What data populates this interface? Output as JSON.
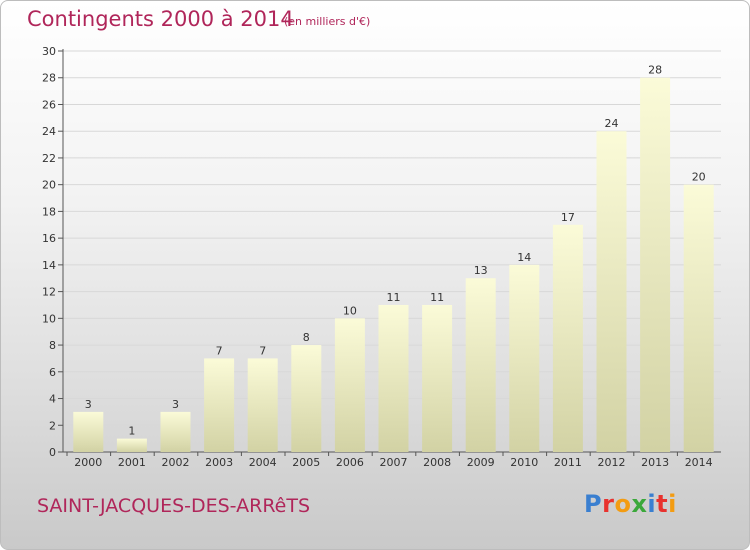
{
  "header": {
    "title": "Contingents 2000 à 2014",
    "subtitle": "(en milliers d'€)"
  },
  "footer": {
    "place": "SAINT-JACQUES-DES-ARRêTS",
    "brand": "Proxiti"
  },
  "colors": {
    "title": "#b0265a",
    "bar_top": "#fbfbd8",
    "bar_bottom": "#d2d2a4"
  },
  "chart_data": {
    "type": "bar",
    "title": "Contingents 2000 à 2014",
    "subtitle": "(en milliers d'€)",
    "xlabel": "",
    "ylabel": "",
    "categories": [
      "2000",
      "2001",
      "2002",
      "2003",
      "2004",
      "2005",
      "2006",
      "2007",
      "2008",
      "2009",
      "2010",
      "2011",
      "2012",
      "2013",
      "2014"
    ],
    "values": [
      3,
      1,
      3,
      7,
      7,
      8,
      10,
      11,
      11,
      13,
      14,
      17,
      24,
      28,
      20
    ],
    "ylim": [
      0,
      30
    ],
    "yticks": [
      0,
      2,
      4,
      6,
      8,
      10,
      12,
      14,
      16,
      18,
      20,
      22,
      24,
      26,
      28,
      30
    ],
    "grid": true,
    "data_labels": true
  }
}
